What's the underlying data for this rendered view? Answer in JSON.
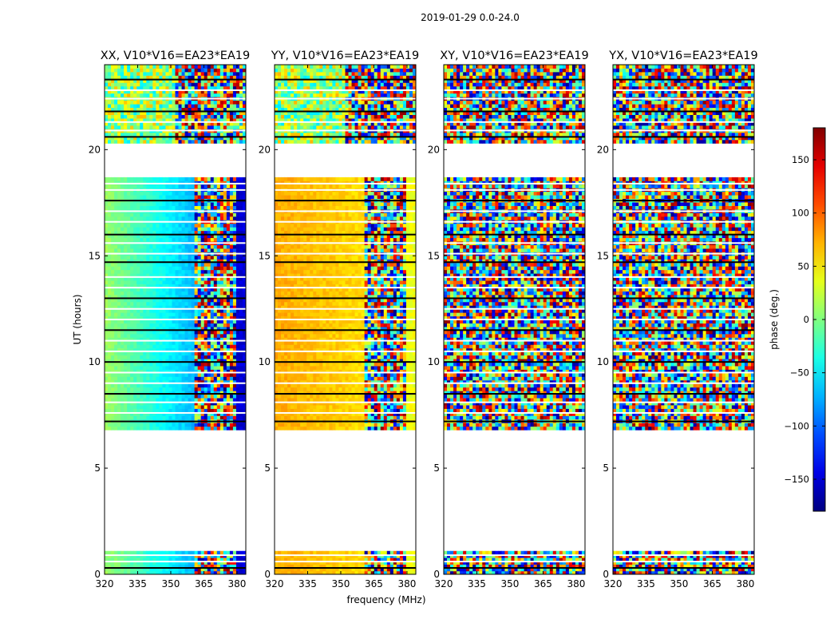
{
  "chart_data": {
    "type": "heatmap",
    "title": "2019-01-29 0.0-24.0",
    "xlabel": "frequency (MHz)",
    "ylabel": "UT (hours)",
    "xlim": [
      320,
      384
    ],
    "ylim": [
      0,
      24
    ],
    "x_ticks": [
      "320",
      "335",
      "350",
      "365",
      "380"
    ],
    "x_tick_values": [
      320,
      335,
      350,
      365,
      380
    ],
    "y_ticks": [
      "0",
      "5",
      "10",
      "15",
      "20"
    ],
    "y_tick_values": [
      0,
      5,
      10,
      15,
      20
    ],
    "colorbar": {
      "label": "phase (deg.)",
      "range": [
        -180,
        180
      ],
      "ticks": [
        "150",
        "100",
        "50",
        "0",
        "−50",
        "−100",
        "−150"
      ],
      "tick_values": [
        150,
        100,
        50,
        0,
        -50,
        -100,
        -150
      ],
      "colormap": "jet"
    },
    "data_gaps_ut": [
      [
        1.1,
        6.8
      ],
      [
        18.7,
        20.3
      ]
    ],
    "data_segments_ut": [
      [
        0,
        1.1
      ],
      [
        6.8,
        18.7
      ],
      [
        20.3,
        24
      ]
    ],
    "panels": [
      {
        "title": "XX, V10*V16=EA23*EA19",
        "pattern": "smooth",
        "phase_at_low_freq_deg": 10,
        "phase_at_high_freq_deg": -150
      },
      {
        "title": "YY, V10*V16=EA23*EA19",
        "pattern": "smooth",
        "phase_at_low_freq_deg": 75,
        "phase_at_high_freq_deg": 40
      },
      {
        "title": "XY, V10*V16=EA23*EA19",
        "pattern": "noise"
      },
      {
        "title": "YX, V10*V16=EA23*EA19",
        "pattern": "noise"
      }
    ]
  }
}
